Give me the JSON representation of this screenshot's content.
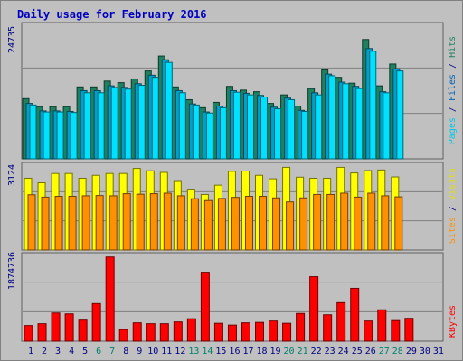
{
  "title": "Daily usage for February 2016",
  "chart_data": [
    {
      "type": "bar",
      "ylabels": [
        "Pages",
        "Files",
        "Hits"
      ],
      "ymax_label": "24735",
      "ymax": 24735,
      "categories": [
        "1",
        "2",
        "3",
        "4",
        "5",
        "6",
        "7",
        "8",
        "9",
        "10",
        "11",
        "12",
        "13",
        "14",
        "15",
        "16",
        "17",
        "18",
        "19",
        "20",
        "21",
        "22",
        "23",
        "24",
        "25",
        "26",
        "27",
        "28",
        "29",
        "30",
        "31"
      ],
      "series": [
        {
          "name": "Hits",
          "color": "#208060",
          "values": [
            11300,
            9800,
            9800,
            9800,
            13500,
            13500,
            14600,
            14300,
            15000,
            16500,
            19300,
            13500,
            11100,
            9600,
            10600,
            13600,
            12900,
            12600,
            10400,
            12000,
            9900,
            13200,
            16700,
            15300,
            14200,
            22400,
            13700,
            17800,
            null,
            null,
            null
          ]
        },
        {
          "name": "Files",
          "color": "#00a0c8",
          "values": [
            10400,
            9000,
            9000,
            8900,
            12800,
            12800,
            13700,
            13400,
            14100,
            15700,
            18600,
            12800,
            10300,
            8800,
            9900,
            12800,
            12300,
            11900,
            9700,
            11400,
            9100,
            12400,
            15900,
            14400,
            13600,
            20700,
            12600,
            16900,
            null,
            null,
            null
          ]
        },
        {
          "name": "Pages",
          "color": "#00e0ff",
          "values": [
            10100,
            8800,
            8800,
            8700,
            12400,
            12400,
            13400,
            13100,
            13800,
            15300,
            18100,
            12400,
            10100,
            8600,
            9600,
            12500,
            12000,
            11600,
            9400,
            11100,
            8900,
            12000,
            15600,
            14100,
            13200,
            20200,
            12400,
            16500,
            null,
            null,
            null
          ]
        }
      ]
    },
    {
      "type": "bar",
      "ylabels": [
        "Sites",
        "Visits"
      ],
      "ymax_label": "3124",
      "ymax": 3124,
      "categories": [
        "1",
        "2",
        "3",
        "4",
        "5",
        "6",
        "7",
        "8",
        "9",
        "10",
        "11",
        "12",
        "13",
        "14",
        "15",
        "16",
        "17",
        "18",
        "19",
        "20",
        "21",
        "22",
        "23",
        "24",
        "25",
        "26",
        "27",
        "28",
        "29",
        "30",
        "31"
      ],
      "series": [
        {
          "name": "Visits",
          "color": "#ffff00",
          "values": [
            2700,
            2530,
            2880,
            2880,
            2700,
            2810,
            2880,
            2880,
            3070,
            2980,
            2920,
            2580,
            2290,
            2090,
            2440,
            2960,
            2970,
            2810,
            2680,
            3110,
            2740,
            2700,
            2700,
            3110,
            2900,
            2990,
            3010,
            2750,
            null,
            null,
            null
          ]
        },
        {
          "name": "Sites",
          "color": "#ff9000",
          "values": [
            2080,
            1990,
            2020,
            2020,
            2040,
            2050,
            2040,
            2120,
            2100,
            2120,
            2140,
            2040,
            1930,
            1860,
            1940,
            1980,
            2020,
            2020,
            1960,
            1810,
            1960,
            2090,
            2090,
            2140,
            1990,
            2140,
            2040,
            2000,
            null,
            null,
            null
          ]
        }
      ]
    },
    {
      "type": "bar",
      "ylabels": [
        "KBytes"
      ],
      "ymax_label": "1874736",
      "ymax": 1874736,
      "categories": [
        "1",
        "2",
        "3",
        "4",
        "5",
        "6",
        "7",
        "8",
        "9",
        "10",
        "11",
        "12",
        "13",
        "14",
        "15",
        "16",
        "17",
        "18",
        "19",
        "20",
        "21",
        "22",
        "23",
        "24",
        "25",
        "26",
        "27",
        "28",
        "29",
        "30",
        "31"
      ],
      "series": [
        {
          "name": "KBytes",
          "color": "#ff0000",
          "values": [
            350000,
            390000,
            630000,
            610000,
            470000,
            840000,
            1880000,
            260000,
            410000,
            390000,
            390000,
            430000,
            500000,
            1540000,
            400000,
            360000,
            410000,
            420000,
            450000,
            400000,
            620000,
            1440000,
            590000,
            860000,
            1180000,
            450000,
            700000,
            460000,
            510000,
            null,
            null
          ]
        }
      ]
    }
  ],
  "day_labels": [
    "1",
    "2",
    "3",
    "4",
    "5",
    "6",
    "7",
    "8",
    "9",
    "10",
    "11",
    "12",
    "13",
    "14",
    "15",
    "16",
    "17",
    "18",
    "19",
    "20",
    "21",
    "22",
    "23",
    "24",
    "25",
    "26",
    "27",
    "28",
    "29",
    "30",
    "31"
  ],
  "weekend_days": [
    "6",
    "7",
    "13",
    "14",
    "20",
    "21",
    "27",
    "28"
  ],
  "colors": {
    "title": "#0000c0",
    "axis_text": "#000080",
    "day_text": "#000080",
    "weekend_text": "#00806a",
    "background": "#c0c0c0",
    "grid": "#808080"
  }
}
